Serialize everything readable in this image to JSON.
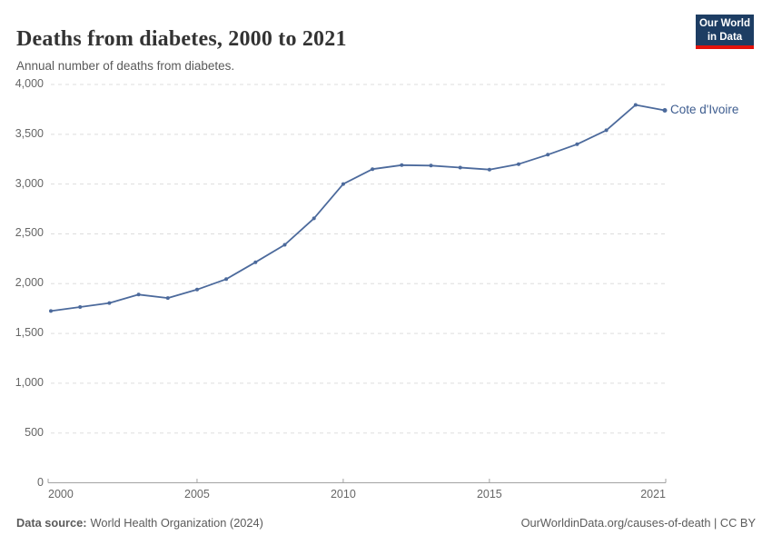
{
  "header": {
    "title": "Deaths from diabetes, 2000 to 2021",
    "subtitle": "Annual number of deaths from diabetes."
  },
  "logo": {
    "line1": "Our World",
    "line2": "in Data"
  },
  "chart_data": {
    "type": "line",
    "title": "Deaths from diabetes, 2000 to 2021",
    "xlabel": "",
    "ylabel": "",
    "xlim": [
      2000,
      2021
    ],
    "ylim": [
      0,
      4000
    ],
    "grid": "horizontal-dashed",
    "legend_position": "end-of-line-label",
    "x": [
      2000,
      2001,
      2002,
      2003,
      2004,
      2005,
      2006,
      2007,
      2008,
      2009,
      2010,
      2011,
      2012,
      2013,
      2014,
      2015,
      2016,
      2017,
      2018,
      2019,
      2020,
      2021
    ],
    "series": [
      {
        "name": "Cote d'Ivoire",
        "color": "#4c6a9c",
        "values": [
          1725,
          1765,
          1805,
          1890,
          1855,
          1940,
          2045,
          2215,
          2390,
          2655,
          3000,
          3150,
          3190,
          3185,
          3165,
          3145,
          3200,
          3295,
          3400,
          3540,
          3795,
          3740
        ]
      }
    ],
    "x_ticks": [
      {
        "value": 2000,
        "label": "2000"
      },
      {
        "value": 2005,
        "label": "2005"
      },
      {
        "value": 2010,
        "label": "2010"
      },
      {
        "value": 2015,
        "label": "2015"
      },
      {
        "value": 2021,
        "label": "2021"
      }
    ],
    "y_ticks": [
      {
        "value": 0,
        "label": "0"
      },
      {
        "value": 500,
        "label": "500"
      },
      {
        "value": 1000,
        "label": "1,000"
      },
      {
        "value": 1500,
        "label": "1,500"
      },
      {
        "value": 2000,
        "label": "2,000"
      },
      {
        "value": 2500,
        "label": "2,500"
      },
      {
        "value": 3000,
        "label": "3,000"
      },
      {
        "value": 3500,
        "label": "3,500"
      },
      {
        "value": 4000,
        "label": "4,000"
      }
    ]
  },
  "footer": {
    "source_label": "Data source:",
    "source_value": "World Health Organization (2024)",
    "link": "OurWorldinData.org/causes-of-death | CC BY"
  },
  "colors": {
    "line": "#4c6a9c",
    "entity_label": "#3d5c8f",
    "gridline": "#dddddd",
    "axis": "#a3a3a3",
    "logo_navy": "#1d3d63",
    "logo_red": "#e3120b"
  }
}
